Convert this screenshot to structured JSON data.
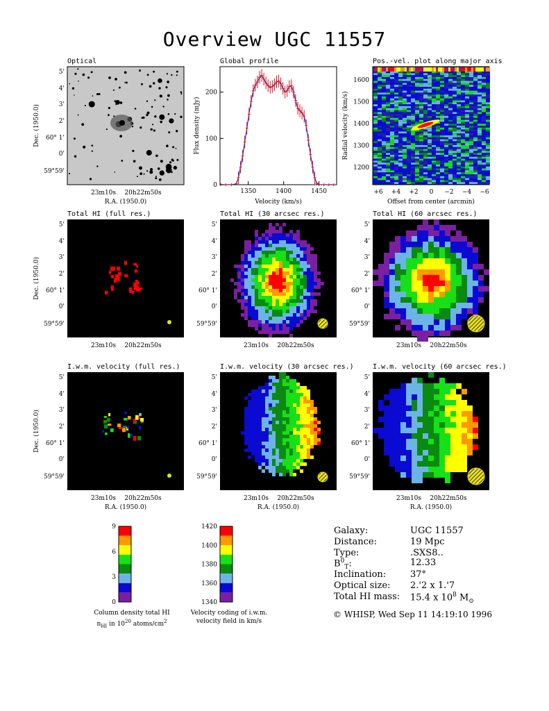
{
  "title": "Overview UGC 11557",
  "panels": {
    "optical": "Optical",
    "global_profile": "Global profile",
    "pv_plot": "Pos.-vel. plot along major axis",
    "total_full": "Total HI (full res.)",
    "total_30": "Total HI (30 arcsec res.)",
    "total_60": "Total HI (60 arcsec res.)",
    "vel_full": "I.w.m. velocity (full res.)",
    "vel_30": "I.w.m. velocity (30 arcsec res.)",
    "vel_60": "I.w.m. velocity (60 arcsec res.)"
  },
  "axes": {
    "dec_label": "Dec. (1950.0)",
    "ra_label": "R.A. (1950.0)",
    "dec_ticks": [
      "5'",
      "4'",
      "3'",
      "2'",
      "60° 1'",
      "0'",
      "59°59'"
    ],
    "ra_ticks": [
      "23m10s",
      "20h22m50s"
    ],
    "flux_label": "Flux density (mJy)",
    "velocity_label": "Velocity (km/s)",
    "radial_label": "Radial velocity (km/s)",
    "offset_label": "Offset from center (arcmin)",
    "offset_ticks": [
      "+6",
      "+4",
      "+2",
      "0",
      "−2",
      "−4",
      "−6"
    ],
    "rv_ticks": [
      "1600",
      "1500",
      "1400",
      "1300",
      "1200"
    ]
  },
  "chart_data": {
    "type": "line",
    "title": "Global profile",
    "xlabel": "Velocity (km/s)",
    "ylabel": "Flux density (mJy)",
    "xlim": [
      1310,
      1475
    ],
    "ylim": [
      0,
      255
    ],
    "x_ticks": [
      1350,
      1400,
      1450
    ],
    "y_ticks": [
      0,
      100,
      200
    ],
    "series": [
      {
        "x": [
          1311,
          1318,
          1326,
          1333,
          1336,
          1339,
          1342,
          1345,
          1348,
          1351,
          1354,
          1357,
          1360,
          1363,
          1366,
          1369,
          1372,
          1375,
          1378,
          1381,
          1384,
          1387,
          1390,
          1393,
          1396,
          1399,
          1402,
          1405,
          1408,
          1411,
          1414,
          1417,
          1420,
          1423,
          1426,
          1429,
          1432,
          1435,
          1438,
          1441,
          1444,
          1447,
          1450,
          1457,
          1464,
          1471
        ],
        "values": [
          0,
          0,
          0,
          2,
          15,
          38,
          62,
          92,
          122,
          152,
          180,
          203,
          215,
          222,
          232,
          236,
          228,
          220,
          214,
          210,
          212,
          216,
          222,
          224,
          218,
          208,
          200,
          203,
          212,
          214,
          200,
          182,
          165,
          160,
          155,
          148,
          128,
          96,
          65,
          38,
          15,
          3,
          0,
          0,
          0,
          0
        ]
      }
    ]
  },
  "colorbars": {
    "column_density": {
      "ticks": [
        "9",
        "6",
        "3",
        "0"
      ],
      "colors": [
        "#7a1fa2",
        "#0a0ad2",
        "#6cb4e8",
        "#0a8a10",
        "#16e016",
        "#ffff00",
        "#ff9900",
        "#ff0000"
      ],
      "caption1": "Column density total HI",
      "caption2": "n",
      "caption2_sub": "HI",
      "caption2_rest": " in 10",
      "caption2_sup": "20",
      "caption2_end": " atoms/cm",
      "caption2_sup2": "2"
    },
    "velocity": {
      "ticks": [
        "1420",
        "1400",
        "1380",
        "1360",
        "1340"
      ],
      "colors": [
        "#7a1fa2",
        "#0a0ad2",
        "#6cb4e8",
        "#0a8a10",
        "#16e016",
        "#ffff00",
        "#ff9900",
        "#ff0000"
      ],
      "caption1": "Velocity coding of i.w.m.",
      "caption2": "velocity field in km/s"
    }
  },
  "info": {
    "galaxy_key": "Galaxy:",
    "galaxy_val": "UGC 11557",
    "distance_key": "Distance:",
    "distance_val": "19 Mpc",
    "type_key": "Type:",
    "type_val": ".SXS8..",
    "bt_key_B": "B",
    "bt_key_sup": "0",
    "bt_key_sub": "T",
    "bt_key_colon": ":",
    "bt_val": "12.33",
    "incl_key": "Inclination:",
    "incl_val": "37°",
    "opt_key": "Optical size:",
    "opt_val": "2.'2 x 1.'7",
    "mass_key": "Total HI mass:",
    "mass_val": "15.4 x 10",
    "mass_exp": "8",
    "mass_unit": " M",
    "mass_sun": "⊙"
  },
  "credit": "© WHISP, Wed Sep 11 14:19:10 1996"
}
